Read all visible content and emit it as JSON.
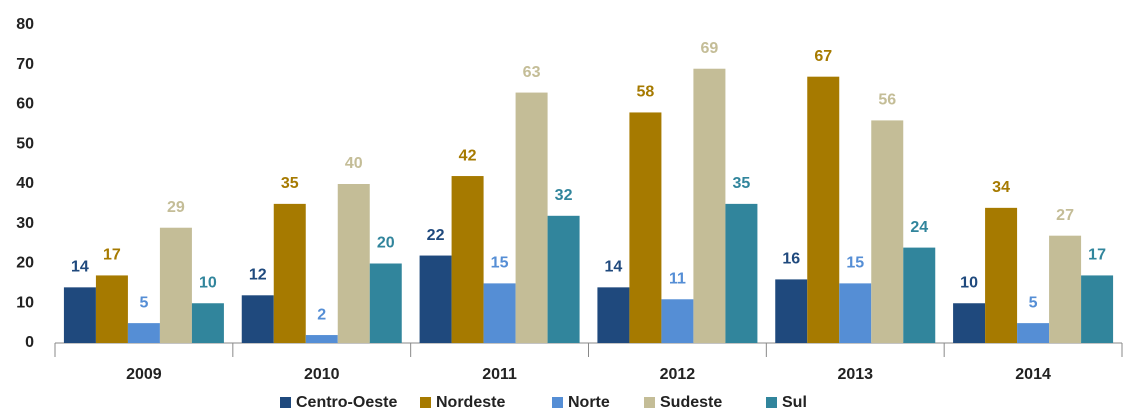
{
  "chart_data": {
    "type": "bar",
    "categories": [
      "2009",
      "2010",
      "2011",
      "2012",
      "2013",
      "2014"
    ],
    "series": [
      {
        "name": "Centro-Oeste",
        "color": "#1f497d",
        "values": [
          14,
          12,
          22,
          14,
          16,
          10
        ]
      },
      {
        "name": "Nordeste",
        "color": "#a67a00",
        "values": [
          17,
          35,
          42,
          58,
          67,
          34
        ]
      },
      {
        "name": "Norte",
        "color": "#558ed5",
        "values": [
          5,
          2,
          15,
          11,
          15,
          5
        ]
      },
      {
        "name": "Sudeste",
        "color": "#c4bd97",
        "values": [
          29,
          40,
          63,
          69,
          56,
          27
        ]
      },
      {
        "name": "Sul",
        "color": "#31859c",
        "values": [
          10,
          20,
          32,
          35,
          24,
          17
        ]
      }
    ],
    "ylim": [
      0,
      80
    ],
    "yticks": [
      0,
      10,
      20,
      30,
      40,
      50,
      60,
      70,
      80
    ],
    "grid": false,
    "legend": "bottom"
  }
}
